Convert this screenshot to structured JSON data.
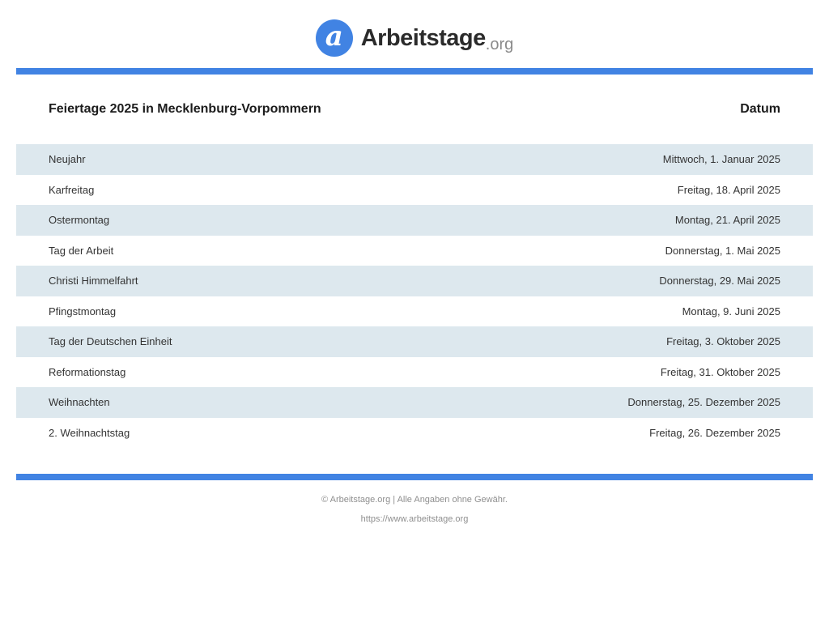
{
  "brand": {
    "logo_letter": "a",
    "name": "Arbeitstage",
    "tld": ".org"
  },
  "table": {
    "title": "Feiertage 2025 in Mecklenburg-Vorpommern",
    "date_header": "Datum",
    "rows": [
      {
        "name": "Neujahr",
        "date": "Mittwoch, 1. Januar 2025"
      },
      {
        "name": "Karfreitag",
        "date": "Freitag, 18. April 2025"
      },
      {
        "name": "Ostermontag",
        "date": "Montag, 21. April 2025"
      },
      {
        "name": "Tag der Arbeit",
        "date": "Donnerstag, 1. Mai 2025"
      },
      {
        "name": "Christi Himmelfahrt",
        "date": "Donnerstag, 29. Mai 2025"
      },
      {
        "name": "Pfingstmontag",
        "date": "Montag, 9. Juni 2025"
      },
      {
        "name": "Tag der Deutschen Einheit",
        "date": "Freitag, 3. Oktober 2025"
      },
      {
        "name": "Reformationstag",
        "date": "Freitag, 31. Oktober 2025"
      },
      {
        "name": "Weihnachten",
        "date": "Donnerstag, 25. Dezember 2025"
      },
      {
        "name": "2. Weihnachtstag",
        "date": "Freitag, 26. Dezember 2025"
      }
    ]
  },
  "footer": {
    "line1": "© Arbeitstage.org | Alle Angaben ohne Gewähr.",
    "line2": "https://www.arbeitstage.org"
  },
  "colors": {
    "accent": "#4183e3",
    "row_shade": "#dde8ee"
  }
}
